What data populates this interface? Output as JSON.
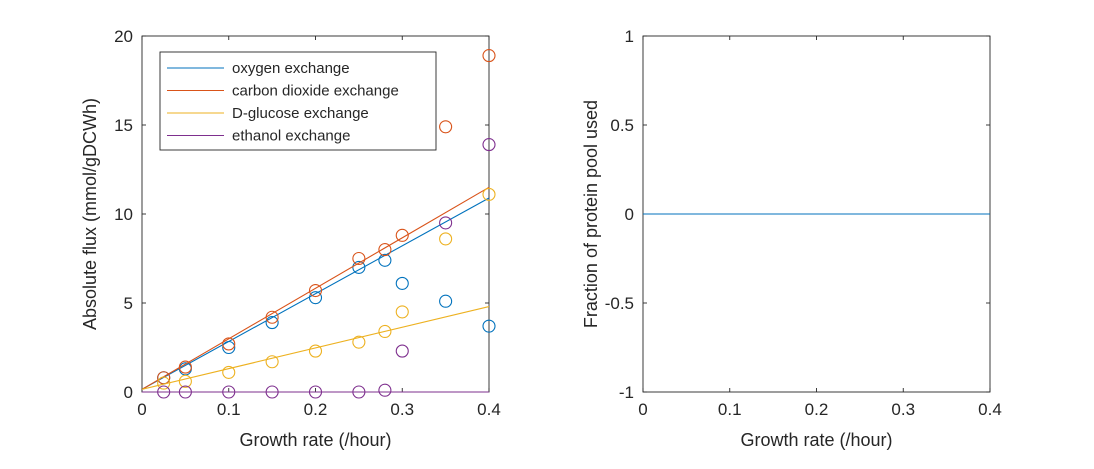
{
  "chart_data": [
    {
      "type": "line",
      "xlabel": "Growth rate (/hour)",
      "ylabel": "Absolute flux (mmol/gDCWh)",
      "xlim": [
        0,
        0.4
      ],
      "ylim": [
        0,
        20
      ],
      "xticks": [
        0,
        0.1,
        0.2,
        0.3,
        0.4
      ],
      "xtick_labels": [
        "0",
        "0.1",
        "0.2",
        "0.3",
        "0.4"
      ],
      "yticks": [
        0,
        5,
        10,
        15,
        20
      ],
      "ytick_labels": [
        "0",
        "5",
        "10",
        "15",
        "20"
      ],
      "grid": false,
      "legend_position": "top-left",
      "series": [
        {
          "name": "oxygen exchange",
          "color": "#0072BD",
          "line": [
            [
              0,
              0.15
            ],
            [
              0.4,
              10.9
            ]
          ],
          "points": [
            [
              0.025,
              0.8
            ],
            [
              0.05,
              1.3
            ],
            [
              0.1,
              2.5
            ],
            [
              0.15,
              3.9
            ],
            [
              0.2,
              5.3
            ],
            [
              0.25,
              7.0
            ],
            [
              0.28,
              7.4
            ],
            [
              0.3,
              6.1
            ],
            [
              0.35,
              5.1
            ],
            [
              0.4,
              3.7
            ]
          ]
        },
        {
          "name": "carbon dioxide exchange",
          "color": "#D95319",
          "line": [
            [
              0,
              0.15
            ],
            [
              0.4,
              11.5
            ]
          ],
          "points": [
            [
              0.025,
              0.8
            ],
            [
              0.05,
              1.4
            ],
            [
              0.1,
              2.7
            ],
            [
              0.15,
              4.2
            ],
            [
              0.2,
              5.7
            ],
            [
              0.25,
              7.5
            ],
            [
              0.28,
              8.0
            ],
            [
              0.3,
              8.8
            ],
            [
              0.35,
              14.9
            ],
            [
              0.4,
              18.9
            ]
          ]
        },
        {
          "name": "D-glucose exchange",
          "color": "#EDB120",
          "line": [
            [
              0,
              0.15
            ],
            [
              0.4,
              4.8
            ]
          ],
          "points": [
            [
              0.025,
              0.5
            ],
            [
              0.05,
              0.6
            ],
            [
              0.1,
              1.1
            ],
            [
              0.15,
              1.7
            ],
            [
              0.2,
              2.3
            ],
            [
              0.25,
              2.8
            ],
            [
              0.28,
              3.4
            ],
            [
              0.3,
              4.5
            ],
            [
              0.35,
              8.6
            ],
            [
              0.4,
              11.1
            ]
          ]
        },
        {
          "name": "ethanol exchange",
          "color": "#7E2F8E",
          "line": [
            [
              0,
              0
            ],
            [
              0.4,
              0
            ]
          ],
          "points": [
            [
              0.025,
              0.0
            ],
            [
              0.05,
              0.0
            ],
            [
              0.1,
              0.0
            ],
            [
              0.15,
              0.0
            ],
            [
              0.2,
              0.0
            ],
            [
              0.25,
              0.0
            ],
            [
              0.28,
              0.1
            ],
            [
              0.3,
              2.3
            ],
            [
              0.35,
              9.5
            ],
            [
              0.4,
              13.9
            ]
          ]
        }
      ]
    },
    {
      "type": "line",
      "xlabel": "Growth rate (/hour)",
      "ylabel": "Fraction of protein pool used",
      "xlim": [
        0,
        0.4
      ],
      "ylim": [
        -1,
        1
      ],
      "xticks": [
        0,
        0.1,
        0.2,
        0.3,
        0.4
      ],
      "xtick_labels": [
        "0",
        "0.1",
        "0.2",
        "0.3",
        "0.4"
      ],
      "yticks": [
        -1,
        -0.5,
        0,
        0.5,
        1
      ],
      "ytick_labels": [
        "-1",
        "-0.5",
        "0",
        "0.5",
        "1"
      ],
      "grid": false,
      "series": [
        {
          "color": "#0072BD",
          "line": [
            [
              0,
              0
            ],
            [
              0.4,
              0
            ]
          ],
          "points": []
        }
      ]
    }
  ]
}
